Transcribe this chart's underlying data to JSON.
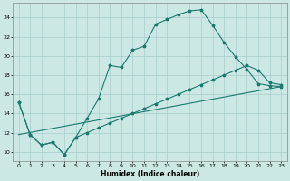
{
  "xlabel": "Humidex (Indice chaleur)",
  "xlim": [
    -0.5,
    23.5
  ],
  "ylim": [
    9,
    25.5
  ],
  "yticks": [
    10,
    12,
    14,
    16,
    18,
    20,
    22,
    24
  ],
  "xticks": [
    0,
    1,
    2,
    3,
    4,
    5,
    6,
    7,
    8,
    9,
    10,
    11,
    12,
    13,
    14,
    15,
    16,
    17,
    18,
    19,
    20,
    21,
    22,
    23
  ],
  "bg_color": "#cce8e4",
  "grid_color": "#a8cccc",
  "line_color": "#1a7a6e",
  "line1_x": [
    0,
    1,
    2,
    3,
    4,
    5,
    6,
    7,
    8,
    9,
    10,
    11,
    12,
    13,
    14,
    15,
    16,
    17,
    18,
    19,
    20,
    21,
    22,
    23
  ],
  "line1_y": [
    15.2,
    11.8,
    10.7,
    11.0,
    9.7,
    11.5,
    13.5,
    15.5,
    19.0,
    18.8,
    20.6,
    21.0,
    23.3,
    23.8,
    24.3,
    24.7,
    24.8,
    23.2,
    21.4,
    19.9,
    18.6,
    17.1,
    16.9,
    16.8
  ],
  "line2_x": [
    0,
    1,
    2,
    3,
    4,
    5,
    6,
    7,
    8,
    9,
    10,
    11,
    12,
    13,
    14,
    15,
    16,
    17,
    18,
    19,
    20,
    21,
    22,
    23
  ],
  "line2_y": [
    15.2,
    11.8,
    10.7,
    11.0,
    9.7,
    11.5,
    12.0,
    12.5,
    13.0,
    13.5,
    14.0,
    14.5,
    15.0,
    15.5,
    16.0,
    16.5,
    17.0,
    17.5,
    18.0,
    18.5,
    19.0,
    18.5,
    17.2,
    17.0
  ],
  "line3_x": [
    0,
    23
  ],
  "line3_y": [
    11.8,
    16.8
  ]
}
